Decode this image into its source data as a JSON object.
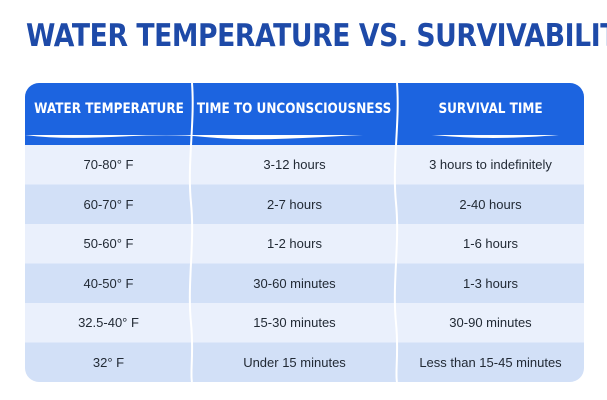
{
  "title": "WATER TEMPERATURE VS. SURVIVABILITY",
  "colors": {
    "title": "#1e4aa8",
    "header": "#1c64e0",
    "row_light": "#eaf0fc",
    "row_dark": "#d2e0f7",
    "text": "#222a35"
  },
  "table": {
    "headers": [
      "WATER TEMPERATURE",
      "TIME TO UNCONSCIOUSNESS",
      "SURVIVAL TIME"
    ],
    "rows": [
      [
        "70-80° F",
        "3-12 hours",
        "3 hours to indefinitely"
      ],
      [
        "60-70° F",
        "2-7 hours",
        "2-40 hours"
      ],
      [
        "50-60° F",
        "1-2 hours",
        "1-6 hours"
      ],
      [
        "40-50° F",
        "30-60 minutes",
        "1-3 hours"
      ],
      [
        "32.5-40° F",
        "15-30 minutes",
        "30-90 minutes"
      ],
      [
        "32° F",
        "Under 15 minutes",
        "Less than 15-45 minutes"
      ]
    ]
  }
}
